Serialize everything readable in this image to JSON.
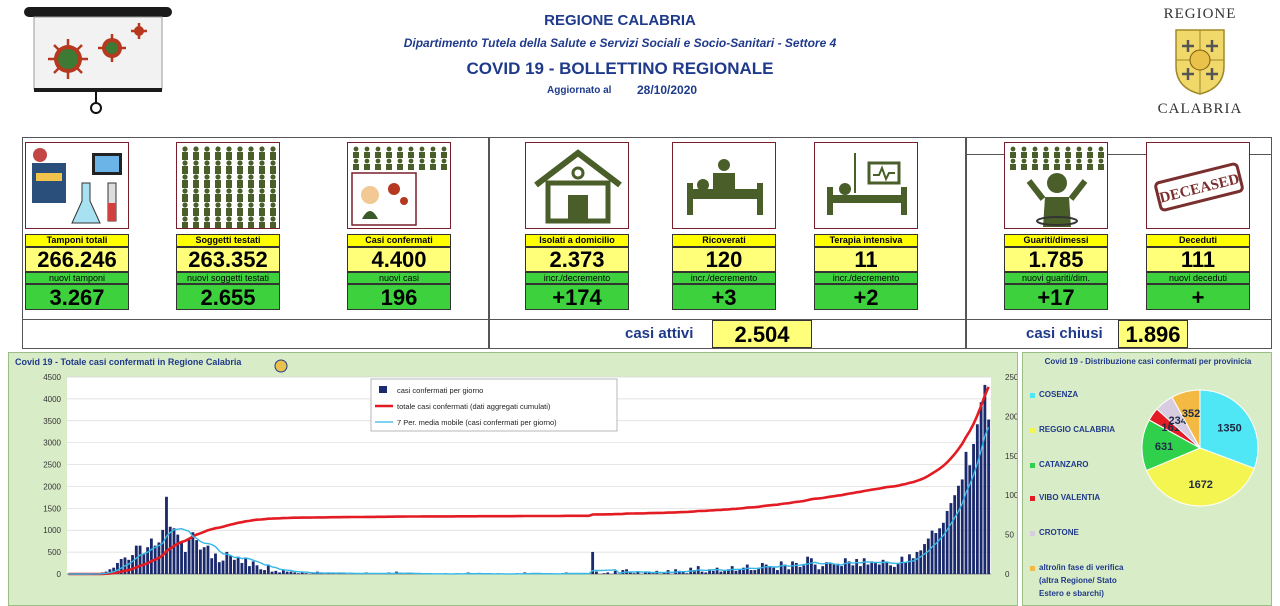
{
  "header": {
    "region": "REGIONE CALABRIA",
    "department": "Dipartimento Tutela della Salute e Servizi Sociali e Socio-Sanitari - Settore 4",
    "bulletin": "COVID 19 - BOLLETTINO REGIONALE",
    "updated_label": "Aggiornato al",
    "updated_date": "28/10/2020"
  },
  "logo": {
    "top": "REGIONE",
    "bottom": "CALABRIA"
  },
  "cards": [
    {
      "label": "Tamponi totali",
      "value": "266.246",
      "sub_label": "nuovi tamponi",
      "sub_value": "3.267"
    },
    {
      "label": "Soggetti testati",
      "value": "263.352",
      "sub_label": "nuovi soggetti testati",
      "sub_value": "2.655"
    },
    {
      "label": "Casi confermati",
      "value": "4.400",
      "sub_label": "nuovi casi",
      "sub_value": "196"
    },
    {
      "label": "Isolati a domicilio",
      "value": "2.373",
      "sub_label": "incr./decremento",
      "sub_value": "+174"
    },
    {
      "label": "Ricoverati",
      "value": "120",
      "sub_label": "incr./decremento",
      "sub_value": "+3"
    },
    {
      "label": "Terapia intensiva",
      "value": "11",
      "sub_label": "incr./decremento",
      "sub_value": "+2"
    },
    {
      "label": "Guariti/dimessi",
      "value": "1.785",
      "sub_label": "nuovi guariti/dim.",
      "sub_value": "+17"
    },
    {
      "label": "Deceduti",
      "value": "111",
      "sub_label": "nuovi deceduti",
      "sub_value": "+"
    }
  ],
  "summary": {
    "active_label": "casi attivi",
    "active_value": "2.504",
    "closed_label": "casi chiusi",
    "closed_value": "1.896"
  },
  "deceased_stamp": "DECEASED",
  "chart_data": [
    {
      "type": "bar",
      "title": "Covid 19 - Totale casi confermati in Regione Calabria",
      "left_axis": {
        "min": 0,
        "max": 4500,
        "ticks": [
          "0",
          "500",
          "1000",
          "1500",
          "2000",
          "2500",
          "3000",
          "3500",
          "4000",
          "4500"
        ]
      },
      "right_axis": {
        "min": 0,
        "max": 250,
        "ticks": [
          "0",
          "50",
          "100",
          "150",
          "200",
          "250"
        ]
      },
      "legend": [
        "casi confermati per giorno",
        "totale casi confermati (dati aggregati cumulati)",
        "7 Per. media mobile (casi confermati per giorno)"
      ],
      "legend_position": "top-center",
      "colors": {
        "bars": "#1a2a6c",
        "cumulative": "#e31b23",
        "moving_avg": "#35b7e8"
      },
      "daily_cases": [
        0,
        0,
        0,
        0,
        0,
        0,
        0,
        1,
        0,
        2,
        3,
        6,
        8,
        14,
        19,
        21,
        18,
        24,
        36,
        36,
        25,
        34,
        45,
        36,
        40,
        56,
        98,
        60,
        58,
        50,
        40,
        28,
        45,
        53,
        43,
        31,
        34,
        36,
        20,
        26,
        15,
        17,
        28,
        23,
        18,
        22,
        14,
        20,
        10,
        16,
        11,
        6,
        5,
        12,
        3,
        4,
        2,
        5,
        3,
        3,
        2,
        1,
        2,
        1,
        0,
        1,
        3,
        1,
        0,
        2,
        1,
        0,
        1,
        2,
        0,
        1,
        0,
        0,
        1,
        2,
        1,
        0,
        1,
        0,
        0,
        2,
        1,
        3,
        0,
        0,
        1,
        0,
        0,
        1,
        1,
        0,
        0,
        0,
        0,
        0,
        1,
        0,
        0,
        1,
        0,
        0,
        2,
        0,
        0,
        1,
        0,
        0,
        0,
        0,
        1,
        0,
        0,
        0,
        0,
        1,
        0,
        2,
        0,
        1,
        0,
        0,
        0,
        0,
        1,
        0,
        0,
        1,
        2,
        0,
        1,
        0,
        0,
        0,
        0,
        28,
        3,
        0,
        1,
        2,
        0,
        4,
        0,
        5,
        6,
        2,
        1,
        3,
        0,
        2,
        3,
        1,
        4,
        0,
        2,
        5,
        0,
        6,
        4,
        3,
        1,
        8,
        5,
        10,
        3,
        2,
        6,
        4,
        8,
        3,
        5,
        6,
        10,
        4,
        6,
        8,
        12,
        5,
        5,
        8,
        14,
        12,
        10,
        8,
        5,
        16,
        12,
        6,
        16,
        14,
        9,
        11,
        22,
        20,
        12,
        6,
        10,
        15,
        14,
        12,
        13,
        10,
        20,
        16,
        11,
        19,
        10,
        20,
        12,
        16,
        14,
        12,
        18,
        15,
        11,
        9,
        14,
        22,
        15,
        25,
        20,
        28,
        30,
        38,
        45,
        55,
        52,
        58,
        65,
        80,
        90,
        100,
        112,
        120,
        155,
        138,
        165,
        190,
        218,
        240,
        196
      ]
    },
    {
      "type": "pie",
      "title": "Covid 19 - Distribuzione casi confermati per provinicia",
      "slices": [
        {
          "name": "COSENZA",
          "value": 1350,
          "color": "#4fe6f5"
        },
        {
          "name": "REGGIO CALABRIA",
          "value": 1672,
          "color": "#f5f551"
        },
        {
          "name": "CATANZARO",
          "value": 631,
          "color": "#2fd14c"
        },
        {
          "name": "VIBO VALENTIA",
          "value": 161,
          "color": "#e31b23"
        },
        {
          "name": "CROTONE",
          "value": 234,
          "color": "#d8cde0"
        },
        {
          "name": "altro/in fase di verifica (altra Regione/ Stato Estero e sbarchi)",
          "value": 352,
          "color": "#f4b942"
        }
      ],
      "legend_lines": [
        "altro/in fase di verifica",
        "(altra Regione/ Stato",
        "Estero e sbarchi)"
      ]
    }
  ]
}
